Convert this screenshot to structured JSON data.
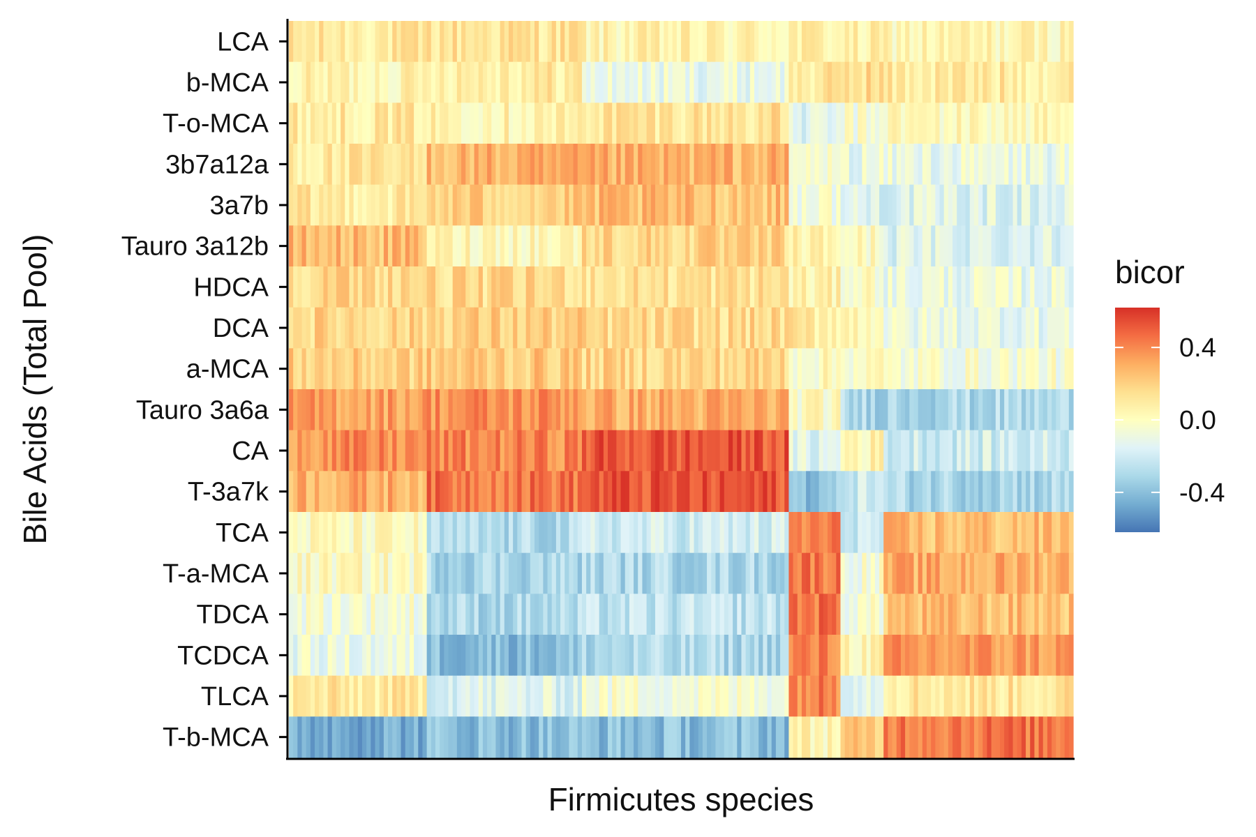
{
  "chart_data": {
    "type": "heatmap",
    "title": "",
    "xlabel": "Firmicutes species",
    "ylabel": "Bile Acids (Total Pool)",
    "rows": [
      "LCA",
      "b-MCA",
      "T-o-MCA",
      "3b7a12a",
      "3a7b",
      "Tauro 3a12b",
      "HDCA",
      "DCA",
      "a-MCA",
      "Tauro 3a6a",
      "CA",
      "T-3a7k",
      "TCA",
      "T-a-MCA",
      "TDCA",
      "TCDCA",
      "TLCA",
      "T-b-MCA"
    ],
    "x_tick_labels": "none",
    "column_groups": [
      {
        "columns": 32
      },
      {
        "columns": 36
      },
      {
        "columns": 48
      },
      {
        "columns": 12
      },
      {
        "columns": 10
      },
      {
        "columns": 44
      }
    ],
    "mean_bicor_by_group": [
      [
        0.1,
        0.13,
        0.05,
        0.07,
        0.05,
        0.04
      ],
      [
        0.05,
        0.1,
        -0.1,
        0.1,
        0.16,
        0.1
      ],
      [
        0.1,
        0.06,
        0.13,
        -0.15,
        -0.05,
        0.02
      ],
      [
        0.1,
        0.28,
        0.28,
        -0.05,
        -0.1,
        -0.1
      ],
      [
        0.1,
        0.2,
        0.25,
        -0.05,
        -0.15,
        -0.15
      ],
      [
        0.26,
        0.04,
        0.18,
        0.05,
        0.0,
        -0.15
      ],
      [
        0.18,
        0.16,
        0.14,
        0.05,
        0.0,
        -0.1
      ],
      [
        0.18,
        0.2,
        0.16,
        0.1,
        0.05,
        -0.1
      ],
      [
        0.2,
        0.22,
        0.18,
        0.0,
        0.0,
        -0.05
      ],
      [
        0.34,
        0.38,
        0.3,
        0.0,
        -0.3,
        -0.3
      ],
      [
        0.38,
        0.4,
        0.52,
        -0.15,
        0.05,
        -0.2
      ],
      [
        0.3,
        0.45,
        0.52,
        -0.38,
        -0.2,
        -0.3
      ],
      [
        0.0,
        -0.3,
        -0.2,
        0.4,
        -0.2,
        0.25
      ],
      [
        0.0,
        -0.3,
        -0.3,
        0.45,
        -0.05,
        0.3
      ],
      [
        -0.05,
        -0.3,
        -0.25,
        0.45,
        -0.05,
        0.25
      ],
      [
        -0.1,
        -0.4,
        -0.3,
        0.4,
        0.05,
        0.35
      ],
      [
        0.1,
        -0.15,
        -0.05,
        0.42,
        -0.1,
        0.12
      ],
      [
        -0.45,
        -0.4,
        -0.4,
        0.05,
        0.2,
        0.45
      ]
    ],
    "legend": {
      "title": "bicor",
      "ticks": [
        0.4,
        0.0,
        -0.4
      ],
      "tick_labels": [
        "0.4",
        "0.0",
        "-0.4"
      ],
      "min": -0.62,
      "max": 0.62,
      "placement": "right"
    },
    "color_scale": [
      "#4575b4",
      "#74add1",
      "#abd9e9",
      "#e0f3f8",
      "#ffffbf",
      "#fee090",
      "#fdae61",
      "#f46d43",
      "#d73027"
    ],
    "grid": false
  }
}
